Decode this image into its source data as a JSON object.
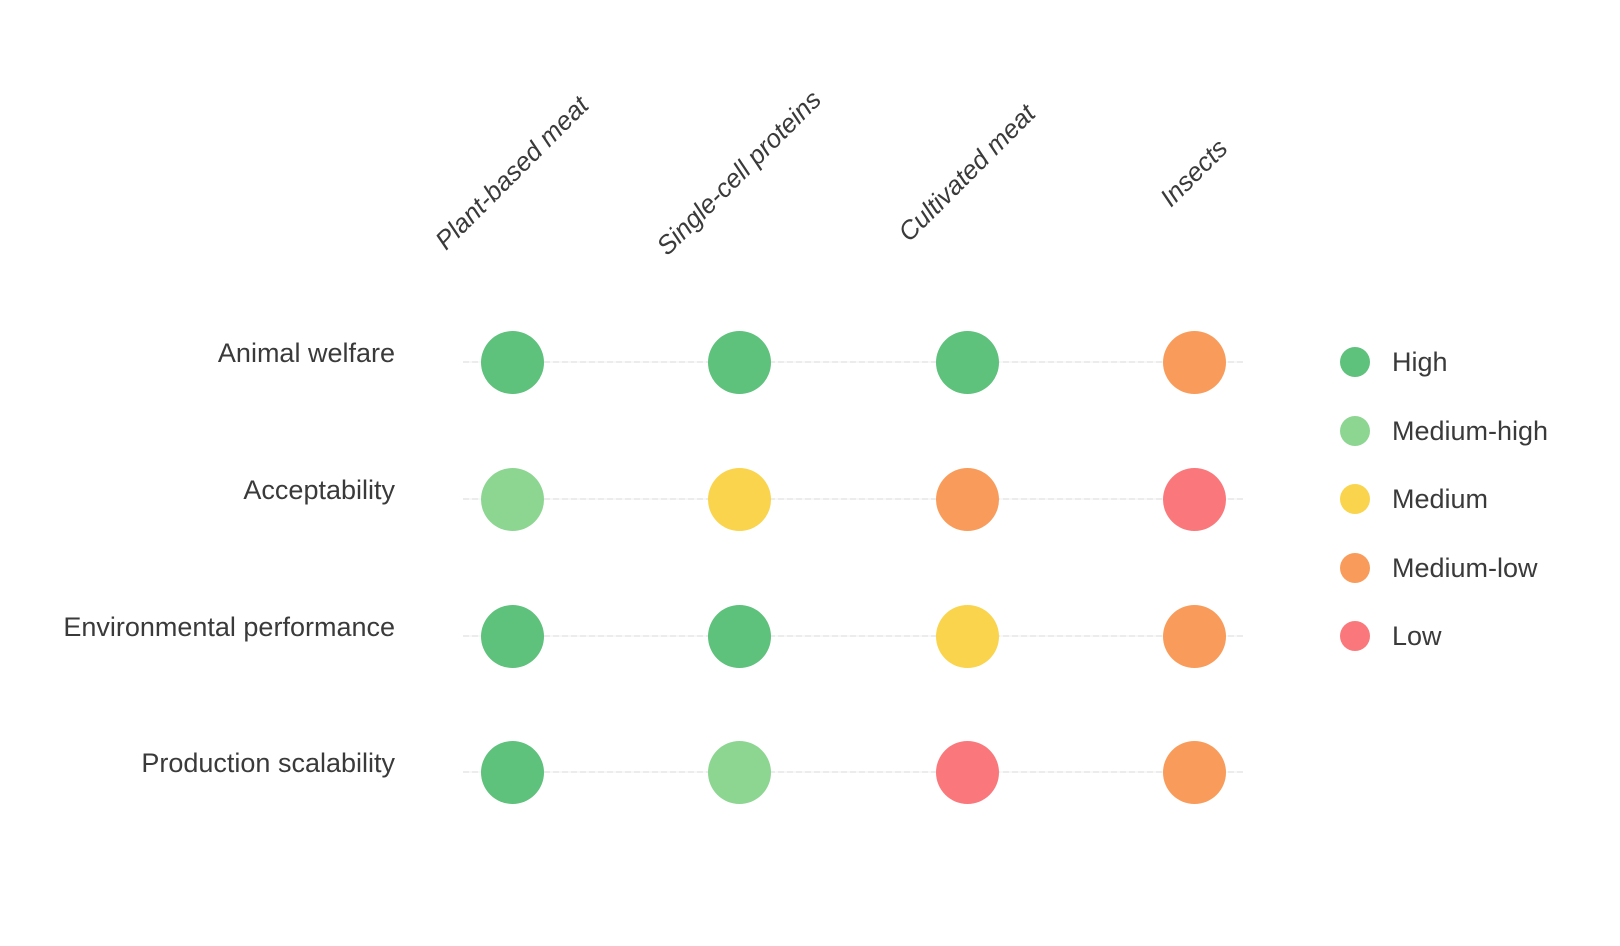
{
  "figure": {
    "background": "#ffffff",
    "text_color": "#3a3a3a",
    "gridline_color": "#ececec"
  },
  "chart_data": {
    "type": "heatmap",
    "variant": "categorical-dot-matrix",
    "title": "",
    "xlabel": "",
    "ylabel": "",
    "grid": "horizontal-lines",
    "columns": [
      "Plant-based meat",
      "Single-cell proteins",
      "Cultivated meat",
      "Insects"
    ],
    "rows": [
      "Animal welfare",
      "Acceptability",
      "Environmental performance",
      "Production scalability"
    ],
    "values": [
      [
        "High",
        "High",
        "High",
        "Medium-low"
      ],
      [
        "Medium-high",
        "Medium",
        "Medium-low",
        "Low"
      ],
      [
        "High",
        "High",
        "Medium",
        "Medium-low"
      ],
      [
        "High",
        "Medium-high",
        "Low",
        "Medium-low"
      ]
    ],
    "level_colors": {
      "High": "#5ec17c",
      "Medium-high": "#8dd692",
      "Medium": "#f9d44c",
      "Medium-low": "#f99c5b",
      "Low": "#fa787b"
    },
    "legend": {
      "position": "right",
      "entries": [
        {
          "label": "High",
          "color": "#5ec17c"
        },
        {
          "label": "Medium-high",
          "color": "#8dd692"
        },
        {
          "label": "Medium",
          "color": "#f9d44c"
        },
        {
          "label": "Medium-low",
          "color": "#f99c5b"
        },
        {
          "label": "Low",
          "color": "#fa787b"
        }
      ]
    }
  }
}
